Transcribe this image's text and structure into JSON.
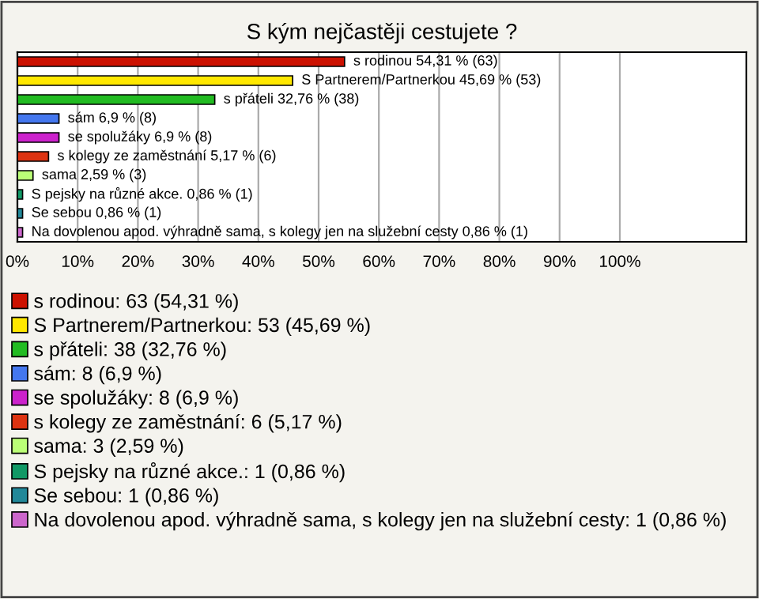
{
  "chart_data": {
    "type": "bar",
    "orientation": "horizontal",
    "title": "S kým nejčastěji cestujete ?",
    "categories": [
      null,
      null,
      null,
      null,
      null,
      null,
      null,
      null,
      null,
      null
    ],
    "series": [
      {
        "name": "s rodinou: 63 (54,31 %)",
        "color": "#cc1100",
        "values": [
          54.31,
          null,
          null,
          null,
          null,
          null,
          null,
          null,
          null,
          null
        ],
        "value_labels": [
          "s rodinou 54,31 % (63)",
          null,
          null,
          null,
          null,
          null,
          null,
          null,
          null,
          null
        ]
      },
      {
        "name": "S Partnerem/Partnerkou: 53 (45,69 %)",
        "color": "#ffe800",
        "values": [
          null,
          45.69,
          null,
          null,
          null,
          null,
          null,
          null,
          null,
          null
        ],
        "value_labels": [
          null,
          "S Partnerem/Partnerkou 45,69 % (53)",
          null,
          null,
          null,
          null,
          null,
          null,
          null,
          null
        ]
      },
      {
        "name": "s přáteli: 38 (32,76 %)",
        "color": "#22bb22",
        "values": [
          null,
          null,
          32.76,
          null,
          null,
          null,
          null,
          null,
          null,
          null
        ],
        "value_labels": [
          null,
          null,
          "s přáteli 32,76 % (38)",
          null,
          null,
          null,
          null,
          null,
          null,
          null
        ]
      },
      {
        "name": "sám: 8 (6,9 %)",
        "color": "#4477ee",
        "values": [
          null,
          null,
          null,
          6.9,
          null,
          null,
          null,
          null,
          null,
          null
        ],
        "value_labels": [
          null,
          null,
          null,
          "sám 6,9 % (8)",
          null,
          null,
          null,
          null,
          null,
          null
        ]
      },
      {
        "name": "se spolužáky: 8 (6,9 %)",
        "color": "#cc22cc",
        "values": [
          null,
          null,
          null,
          null,
          6.9,
          null,
          null,
          null,
          null,
          null
        ],
        "value_labels": [
          null,
          null,
          null,
          null,
          "se spolužáky 6,9 % (8)",
          null,
          null,
          null,
          null,
          null
        ]
      },
      {
        "name": "s kolegy ze zaměstnání: 6 (5,17 %)",
        "color": "#dd3311",
        "values": [
          null,
          null,
          null,
          null,
          null,
          5.17,
          null,
          null,
          null,
          null
        ],
        "value_labels": [
          null,
          null,
          null,
          null,
          null,
          "s kolegy ze zaměstnání 5,17 % (6)",
          null,
          null,
          null,
          null
        ]
      },
      {
        "name": "sama: 3 (2,59 %)",
        "color": "#bbff77",
        "values": [
          null,
          null,
          null,
          null,
          null,
          null,
          2.59,
          null,
          null,
          null
        ],
        "value_labels": [
          null,
          null,
          null,
          null,
          null,
          null,
          "sama 2,59 % (3)",
          null,
          null,
          null
        ]
      },
      {
        "name": "S pejsky na různé akce.: 1 (0,86 %)",
        "color": "#119966",
        "values": [
          null,
          null,
          null,
          null,
          null,
          null,
          null,
          0.86,
          null,
          null
        ],
        "value_labels": [
          null,
          null,
          null,
          null,
          null,
          null,
          null,
          "S pejsky na různé akce. 0,86 % (1)",
          null,
          null
        ]
      },
      {
        "name": "Se sebou: 1 (0,86 %)",
        "color": "#228899",
        "values": [
          null,
          null,
          null,
          null,
          null,
          null,
          null,
          null,
          0.86,
          null
        ],
        "value_labels": [
          null,
          null,
          null,
          null,
          null,
          null,
          null,
          null,
          "Se sebou 0,86 % (1)",
          null
        ]
      },
      {
        "name": "Na dovolenou apod. výhradně sama, s kolegy jen na služební cesty: 1 (0,86 %)",
        "color": "#cc66cc",
        "values": [
          null,
          null,
          null,
          null,
          null,
          null,
          null,
          null,
          null,
          0.86
        ],
        "value_labels": [
          null,
          null,
          null,
          null,
          null,
          null,
          null,
          null,
          null,
          "Na dovolenou apod. výhradně sama, s kolegy jen na služební cesty 0,86 % (1)"
        ]
      }
    ],
    "xlim": [
      0,
      121
    ],
    "xticks": [
      {
        "value": 0,
        "label": "0%"
      },
      {
        "value": 10,
        "label": "10%"
      },
      {
        "value": 20,
        "label": "20%"
      },
      {
        "value": 30,
        "label": "30%"
      },
      {
        "value": 40,
        "label": "40%"
      },
      {
        "value": 50,
        "label": "50%"
      },
      {
        "value": 60,
        "label": "60%"
      },
      {
        "value": 70,
        "label": "70%"
      },
      {
        "value": 80,
        "label": "80%"
      },
      {
        "value": 90,
        "label": "90%"
      },
      {
        "value": 100,
        "label": "100%"
      }
    ],
    "grid": "x",
    "legend": "bottom",
    "tick_labels": "x"
  }
}
